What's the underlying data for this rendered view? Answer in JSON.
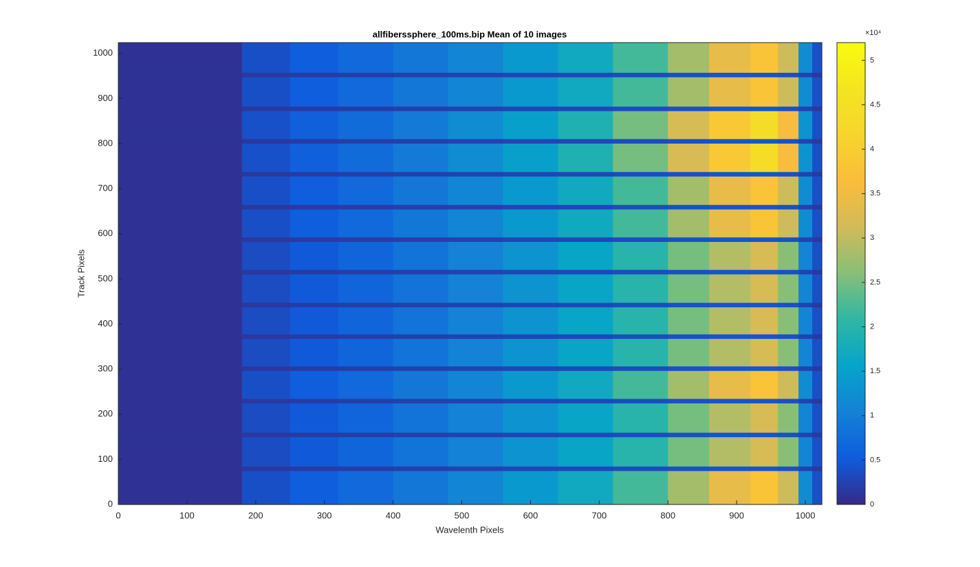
{
  "chart_data": {
    "type": "heatmap",
    "title": "allfiberssphere_100ms.bip  Mean of 10 images",
    "xlabel": "Wavelenth Pixels",
    "ylabel": "Track Pixels",
    "xlim": [
      0,
      1024
    ],
    "ylim": [
      0,
      1024
    ],
    "xticks": [
      0,
      100,
      200,
      300,
      400,
      500,
      600,
      700,
      800,
      900,
      1000
    ],
    "yticks": [
      0,
      100,
      200,
      300,
      400,
      500,
      600,
      700,
      800,
      900,
      1000
    ],
    "x_edges": [
      0,
      180,
      250,
      320,
      400,
      480,
      560,
      640,
      720,
      800,
      860,
      920,
      960,
      990,
      1010,
      1024
    ],
    "y_edges": [
      0,
      75,
      85,
      150,
      160,
      225,
      235,
      297,
      307,
      368,
      378,
      438,
      448,
      511,
      521,
      583,
      593,
      655,
      665,
      728,
      738,
      801,
      811,
      873,
      883,
      948,
      958,
      1024
    ],
    "z": [
      [
        800,
        3800,
        5500,
        7000,
        9000,
        11000,
        14000,
        17000,
        22000,
        28000,
        34000,
        38000,
        31000,
        12000,
        4000
      ],
      [
        800,
        1500,
        1800,
        2000,
        2200,
        2500,
        2800,
        3000,
        3500,
        4000,
        4500,
        4500,
        4000,
        2500,
        1500
      ],
      [
        800,
        3500,
        5000,
        6500,
        8500,
        10500,
        13000,
        16000,
        20000,
        25000,
        29000,
        32000,
        26000,
        11000,
        4000
      ],
      [
        800,
        1500,
        1800,
        2000,
        2200,
        2500,
        2800,
        3000,
        3500,
        4000,
        4500,
        4500,
        4000,
        2500,
        1500
      ],
      [
        800,
        3500,
        5000,
        6500,
        8500,
        10500,
        13000,
        16000,
        20000,
        25000,
        29000,
        32000,
        26000,
        11000,
        4000
      ],
      [
        800,
        1500,
        1800,
        2000,
        2200,
        2500,
        2800,
        3000,
        3500,
        4000,
        4500,
        4500,
        4000,
        2500,
        1500
      ],
      [
        800,
        3800,
        5500,
        7000,
        9000,
        11000,
        14000,
        17000,
        22000,
        28000,
        34000,
        38000,
        31000,
        12000,
        4000
      ],
      [
        800,
        1500,
        1800,
        2000,
        2200,
        2500,
        2800,
        3000,
        3500,
        4000,
        4500,
        4500,
        4000,
        2500,
        1500
      ],
      [
        800,
        3500,
        5000,
        6500,
        8500,
        10500,
        13000,
        16000,
        20000,
        25000,
        29000,
        32000,
        26000,
        11000,
        4000
      ],
      [
        800,
        1500,
        1800,
        2000,
        2200,
        2500,
        2800,
        3000,
        3500,
        4000,
        4500,
        4500,
        4000,
        2500,
        1500
      ],
      [
        800,
        3500,
        5000,
        6500,
        8500,
        10500,
        13000,
        16000,
        20000,
        25000,
        29000,
        32000,
        26000,
        11000,
        4000
      ],
      [
        800,
        1500,
        1800,
        2000,
        2200,
        2500,
        2800,
        3000,
        3500,
        4000,
        4500,
        4500,
        4000,
        2500,
        1500
      ],
      [
        800,
        3500,
        5000,
        6500,
        8500,
        10500,
        13000,
        16000,
        20000,
        25000,
        29000,
        32000,
        26000,
        11000,
        4000
      ],
      [
        800,
        1500,
        1800,
        2000,
        2200,
        2500,
        2800,
        3000,
        3500,
        4000,
        4500,
        4500,
        4000,
        2500,
        1500
      ],
      [
        800,
        3500,
        5000,
        6500,
        8500,
        10500,
        13000,
        16000,
        20000,
        25000,
        29000,
        32000,
        26000,
        11000,
        4000
      ],
      [
        800,
        1500,
        1800,
        2000,
        2200,
        2500,
        2800,
        3000,
        3500,
        4000,
        4500,
        4500,
        4000,
        2500,
        1500
      ],
      [
        800,
        3800,
        5500,
        7000,
        9000,
        11000,
        14000,
        17000,
        22000,
        28000,
        34000,
        38000,
        31000,
        12000,
        4000
      ],
      [
        800,
        1500,
        1800,
        2000,
        2200,
        2500,
        2800,
        3000,
        3500,
        4000,
        4500,
        4500,
        4000,
        2500,
        1500
      ],
      [
        800,
        3800,
        5500,
        7000,
        9000,
        11000,
        14000,
        17000,
        22000,
        28000,
        34000,
        38000,
        31000,
        12000,
        4000
      ],
      [
        800,
        1500,
        1800,
        2000,
        2200,
        2500,
        2800,
        3000,
        3500,
        4000,
        4500,
        4500,
        4000,
        2500,
        1500
      ],
      [
        800,
        4000,
        5800,
        7500,
        9500,
        12000,
        15000,
        19000,
        25000,
        32000,
        39000,
        44000,
        36000,
        13000,
        4000
      ],
      [
        800,
        1500,
        1800,
        2000,
        2200,
        2500,
        2800,
        3000,
        3500,
        4000,
        4500,
        4500,
        4000,
        2500,
        1500
      ],
      [
        800,
        4000,
        5800,
        7500,
        9500,
        12000,
        15000,
        19000,
        25000,
        32000,
        39000,
        44000,
        36000,
        13000,
        4000
      ],
      [
        800,
        1500,
        1800,
        2000,
        2200,
        2500,
        2800,
        3000,
        3500,
        4000,
        4500,
        4500,
        4000,
        2500,
        1500
      ],
      [
        800,
        3800,
        5500,
        7000,
        9000,
        11000,
        14000,
        17000,
        22000,
        28000,
        34000,
        38000,
        31000,
        12000,
        4000
      ],
      [
        800,
        1500,
        1800,
        2000,
        2200,
        2500,
        2800,
        3000,
        3500,
        4000,
        4500,
        4500,
        4000,
        2500,
        1500
      ],
      [
        800,
        3800,
        5500,
        7000,
        9000,
        11000,
        14000,
        17000,
        22000,
        28000,
        34000,
        38000,
        31000,
        12000,
        4000
      ]
    ],
    "colormap": "parula",
    "clim": [
      0,
      52000
    ],
    "cticks": [
      0,
      {
        "value": 5000,
        "label": "0.5"
      },
      {
        "value": 10000,
        "label": "1"
      },
      {
        "value": 15000,
        "label": "1.5"
      },
      {
        "value": 20000,
        "label": "2"
      },
      {
        "value": 25000,
        "label": "2.5"
      },
      {
        "value": 30000,
        "label": "3"
      },
      {
        "value": 35000,
        "label": "3.5"
      },
      {
        "value": 40000,
        "label": "4"
      },
      {
        "value": 45000,
        "label": "4.5"
      },
      {
        "value": 50000,
        "label": "5"
      }
    ],
    "colorbar_exponent": "×10⁴"
  }
}
